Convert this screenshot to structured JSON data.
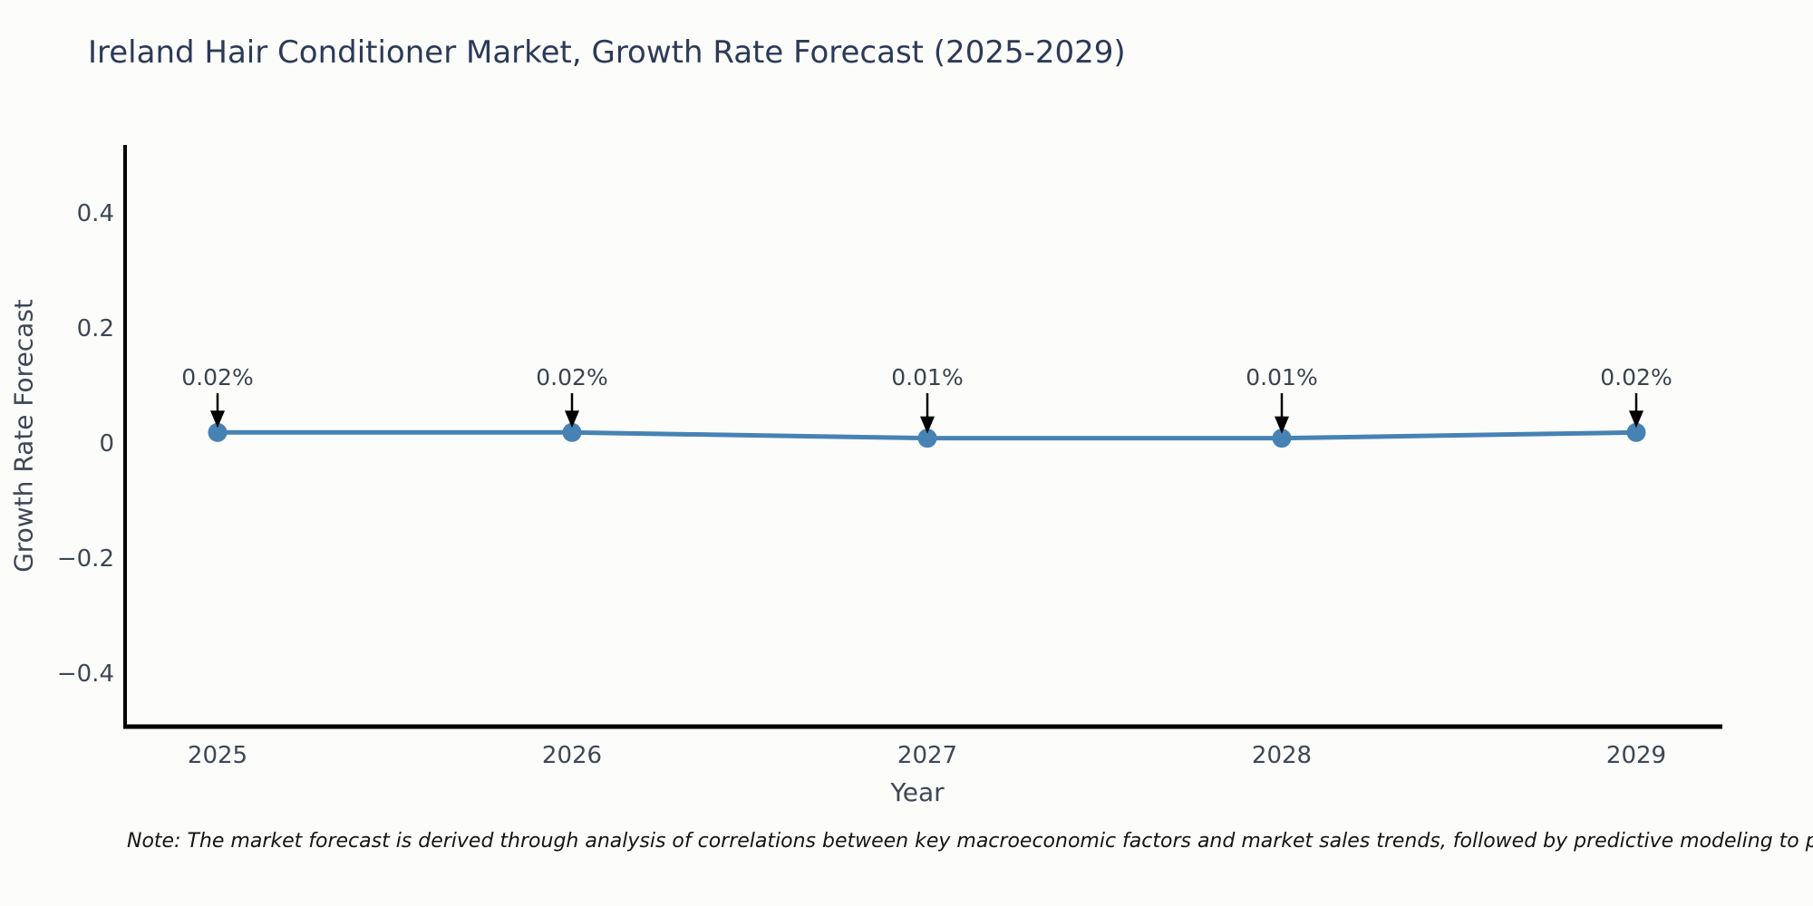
{
  "chart": {
    "title": "Ireland Hair Conditioner Market, Growth Rate Forecast (2025-2029)",
    "xlabel": "Year",
    "ylabel": "Growth Rate Forecast"
  },
  "note": "Note: The market forecast is derived through analysis of correlations between key macroeconomic factors and market sales trends, followed by predictive modeling to project future sales",
  "chart_data": {
    "type": "line",
    "title": "Ireland Hair Conditioner Market, Growth Rate Forecast (2025-2029)",
    "xlabel": "Year",
    "ylabel": "Growth Rate Forecast",
    "categories": [
      "2025",
      "2026",
      "2027",
      "2028",
      "2029"
    ],
    "series": [
      {
        "name": "Growth Rate Forecast",
        "values": [
          0.02,
          0.02,
          0.01,
          0.01,
          0.02
        ]
      }
    ],
    "point_labels": [
      "0.02%",
      "0.02%",
      "0.01%",
      "0.01%",
      "0.02%"
    ],
    "yticks": [
      {
        "label": "0.4",
        "value": 0.4
      },
      {
        "label": "0.2",
        "value": 0.2
      },
      {
        "label": "0",
        "value": 0
      },
      {
        "label": "−0.2",
        "value": -0.2
      },
      {
        "label": "−0.4",
        "value": -0.4
      }
    ],
    "ylim": [
      -0.49,
      0.52
    ],
    "grid": false,
    "legend_position": "none",
    "annotations_have_arrows": true
  },
  "colors": {
    "background": "#fcfcfa",
    "title_text": "#2c3a58",
    "tick_text": "#3d4756",
    "line": "#4682b4",
    "marker": "#4682b4",
    "arrow": "#000000",
    "axis_spine": "#000000",
    "note_text": "#141414"
  }
}
